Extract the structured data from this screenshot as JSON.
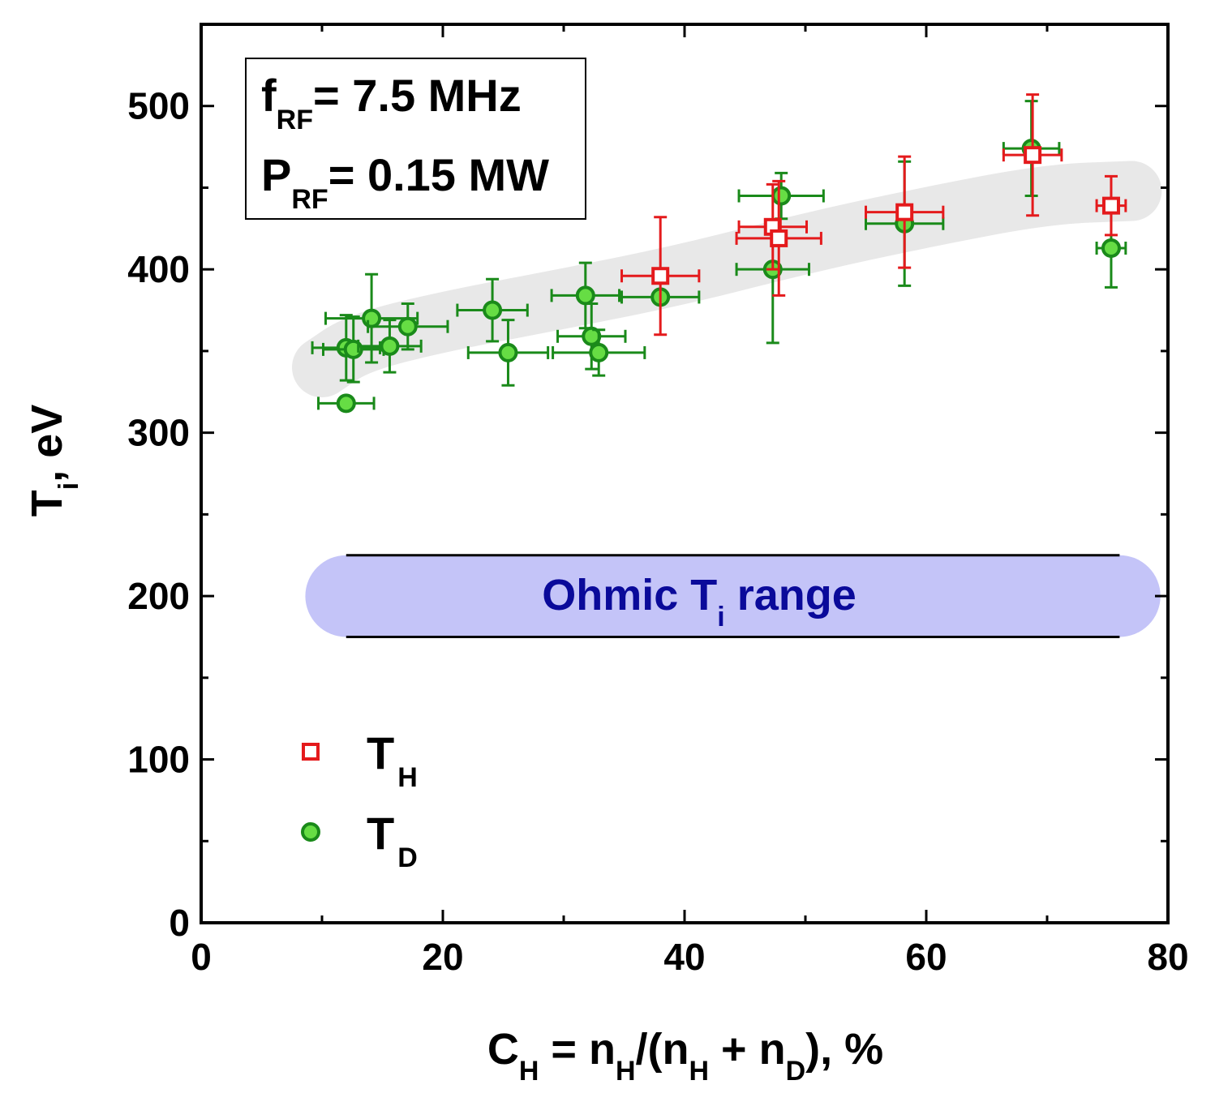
{
  "chart_data": {
    "type": "scatter",
    "xlabel": {
      "main": "C",
      "sub1": "H",
      "mid1": " = n",
      "sub2": "H",
      "mid2": "/(n",
      "sub3": "H",
      "mid3": " + n",
      "sub4": "D",
      "tail": "), %"
    },
    "ylabel": {
      "main": "T",
      "sub": "i",
      "tail": ", eV"
    },
    "xlim": [
      0,
      80
    ],
    "ylim": [
      0,
      550
    ],
    "x_ticks": [
      0,
      20,
      40,
      60,
      80
    ],
    "y_ticks": [
      0,
      100,
      200,
      300,
      400,
      500
    ],
    "x_tick_labels": [
      "0",
      "20",
      "40",
      "60",
      "80"
    ],
    "y_tick_labels": [
      "0",
      "100",
      "200",
      "300",
      "400",
      "500"
    ],
    "annotation_box": {
      "line1": {
        "main": "f",
        "sub": "RF",
        "tail": "= 7.5 MHz"
      },
      "line2": {
        "main": "P",
        "sub": "RF",
        "tail": "= 0.15 MW"
      }
    },
    "ohmic_band": {
      "label_main": "Ohmic T",
      "label_sub": "i",
      "label_tail": " range",
      "y_low": 175,
      "y_high": 225,
      "x_start": 12,
      "x_end": 76,
      "color": "#c4c4f8"
    },
    "trend_band": {
      "color": "#e8e8e8",
      "points": [
        [
          10,
          340
        ],
        [
          13,
          355
        ],
        [
          20,
          368
        ],
        [
          30,
          382
        ],
        [
          40,
          397
        ],
        [
          50,
          416
        ],
        [
          60,
          432
        ],
        [
          70,
          446
        ],
        [
          77,
          448
        ]
      ]
    },
    "legend": {
      "position": "bottom-left",
      "items": [
        {
          "main": "T",
          "sub": "H",
          "marker": "square",
          "color": "#e41a1c"
        },
        {
          "main": "T",
          "sub": "D",
          "marker": "circle",
          "color": "#1a8a1a"
        }
      ]
    },
    "series": [
      {
        "name": "T_H",
        "marker": "square",
        "color": "#e41a1c",
        "points": [
          {
            "x": 38.0,
            "y": 396,
            "xerr": 3.2,
            "yerr_low": 36,
            "yerr_high": 36
          },
          {
            "x": 47.3,
            "y": 426,
            "xerr": 2.8,
            "yerr_low": 26,
            "yerr_high": 26
          },
          {
            "x": 47.8,
            "y": 419,
            "xerr": 3.5,
            "yerr_low": 35,
            "yerr_high": 35
          },
          {
            "x": 58.2,
            "y": 435,
            "xerr": 3.2,
            "yerr_low": 34,
            "yerr_high": 34
          },
          {
            "x": 68.8,
            "y": 470,
            "xerr": 2.4,
            "yerr_low": 37,
            "yerr_high": 37
          },
          {
            "x": 75.3,
            "y": 439,
            "xerr": 1.2,
            "yerr_low": 18,
            "yerr_high": 18
          }
        ]
      },
      {
        "name": "T_D",
        "marker": "circle",
        "color": "#1a8a1a",
        "fill": "#66dd44",
        "points": [
          {
            "x": 12.0,
            "y": 318,
            "xerr": 2.3,
            "yerr_low": 0,
            "yerr_high": 0
          },
          {
            "x": 12.0,
            "y": 352,
            "xerr": 2.8,
            "yerr_low": 20,
            "yerr_high": 20
          },
          {
            "x": 12.6,
            "y": 351,
            "xerr": 2.5,
            "yerr_low": 20,
            "yerr_high": 20
          },
          {
            "x": 14.1,
            "y": 370,
            "xerr": 3.8,
            "yerr_low": 27,
            "yerr_high": 27
          },
          {
            "x": 15.6,
            "y": 353,
            "xerr": 2.6,
            "yerr_low": 16,
            "yerr_high": 16
          },
          {
            "x": 17.1,
            "y": 365,
            "xerr": 3.3,
            "yerr_low": 14,
            "yerr_high": 14
          },
          {
            "x": 24.1,
            "y": 375,
            "xerr": 2.9,
            "yerr_low": 19,
            "yerr_high": 19
          },
          {
            "x": 25.4,
            "y": 349,
            "xerr": 3.3,
            "yerr_low": 20,
            "yerr_high": 20
          },
          {
            "x": 31.8,
            "y": 384,
            "xerr": 2.8,
            "yerr_low": 20,
            "yerr_high": 20
          },
          {
            "x": 32.3,
            "y": 359,
            "xerr": 2.8,
            "yerr_low": 20,
            "yerr_high": 20
          },
          {
            "x": 32.9,
            "y": 349,
            "xerr": 3.8,
            "yerr_low": 14,
            "yerr_high": 14
          },
          {
            "x": 38.0,
            "y": 383,
            "xerr": 3.2,
            "yerr_low": 0,
            "yerr_high": 0
          },
          {
            "x": 47.3,
            "y": 400,
            "xerr": 3.0,
            "yerr_low": 45,
            "yerr_high": 0
          },
          {
            "x": 48.0,
            "y": 445,
            "xerr": 3.5,
            "yerr_low": 14,
            "yerr_high": 14
          },
          {
            "x": 58.2,
            "y": 428,
            "xerr": 3.2,
            "yerr_low": 38,
            "yerr_high": 38
          },
          {
            "x": 68.7,
            "y": 474,
            "xerr": 2.3,
            "yerr_low": 29,
            "yerr_high": 29
          },
          {
            "x": 75.3,
            "y": 413,
            "xerr": 1.2,
            "yerr_low": 24,
            "yerr_high": 24
          }
        ]
      }
    ]
  }
}
